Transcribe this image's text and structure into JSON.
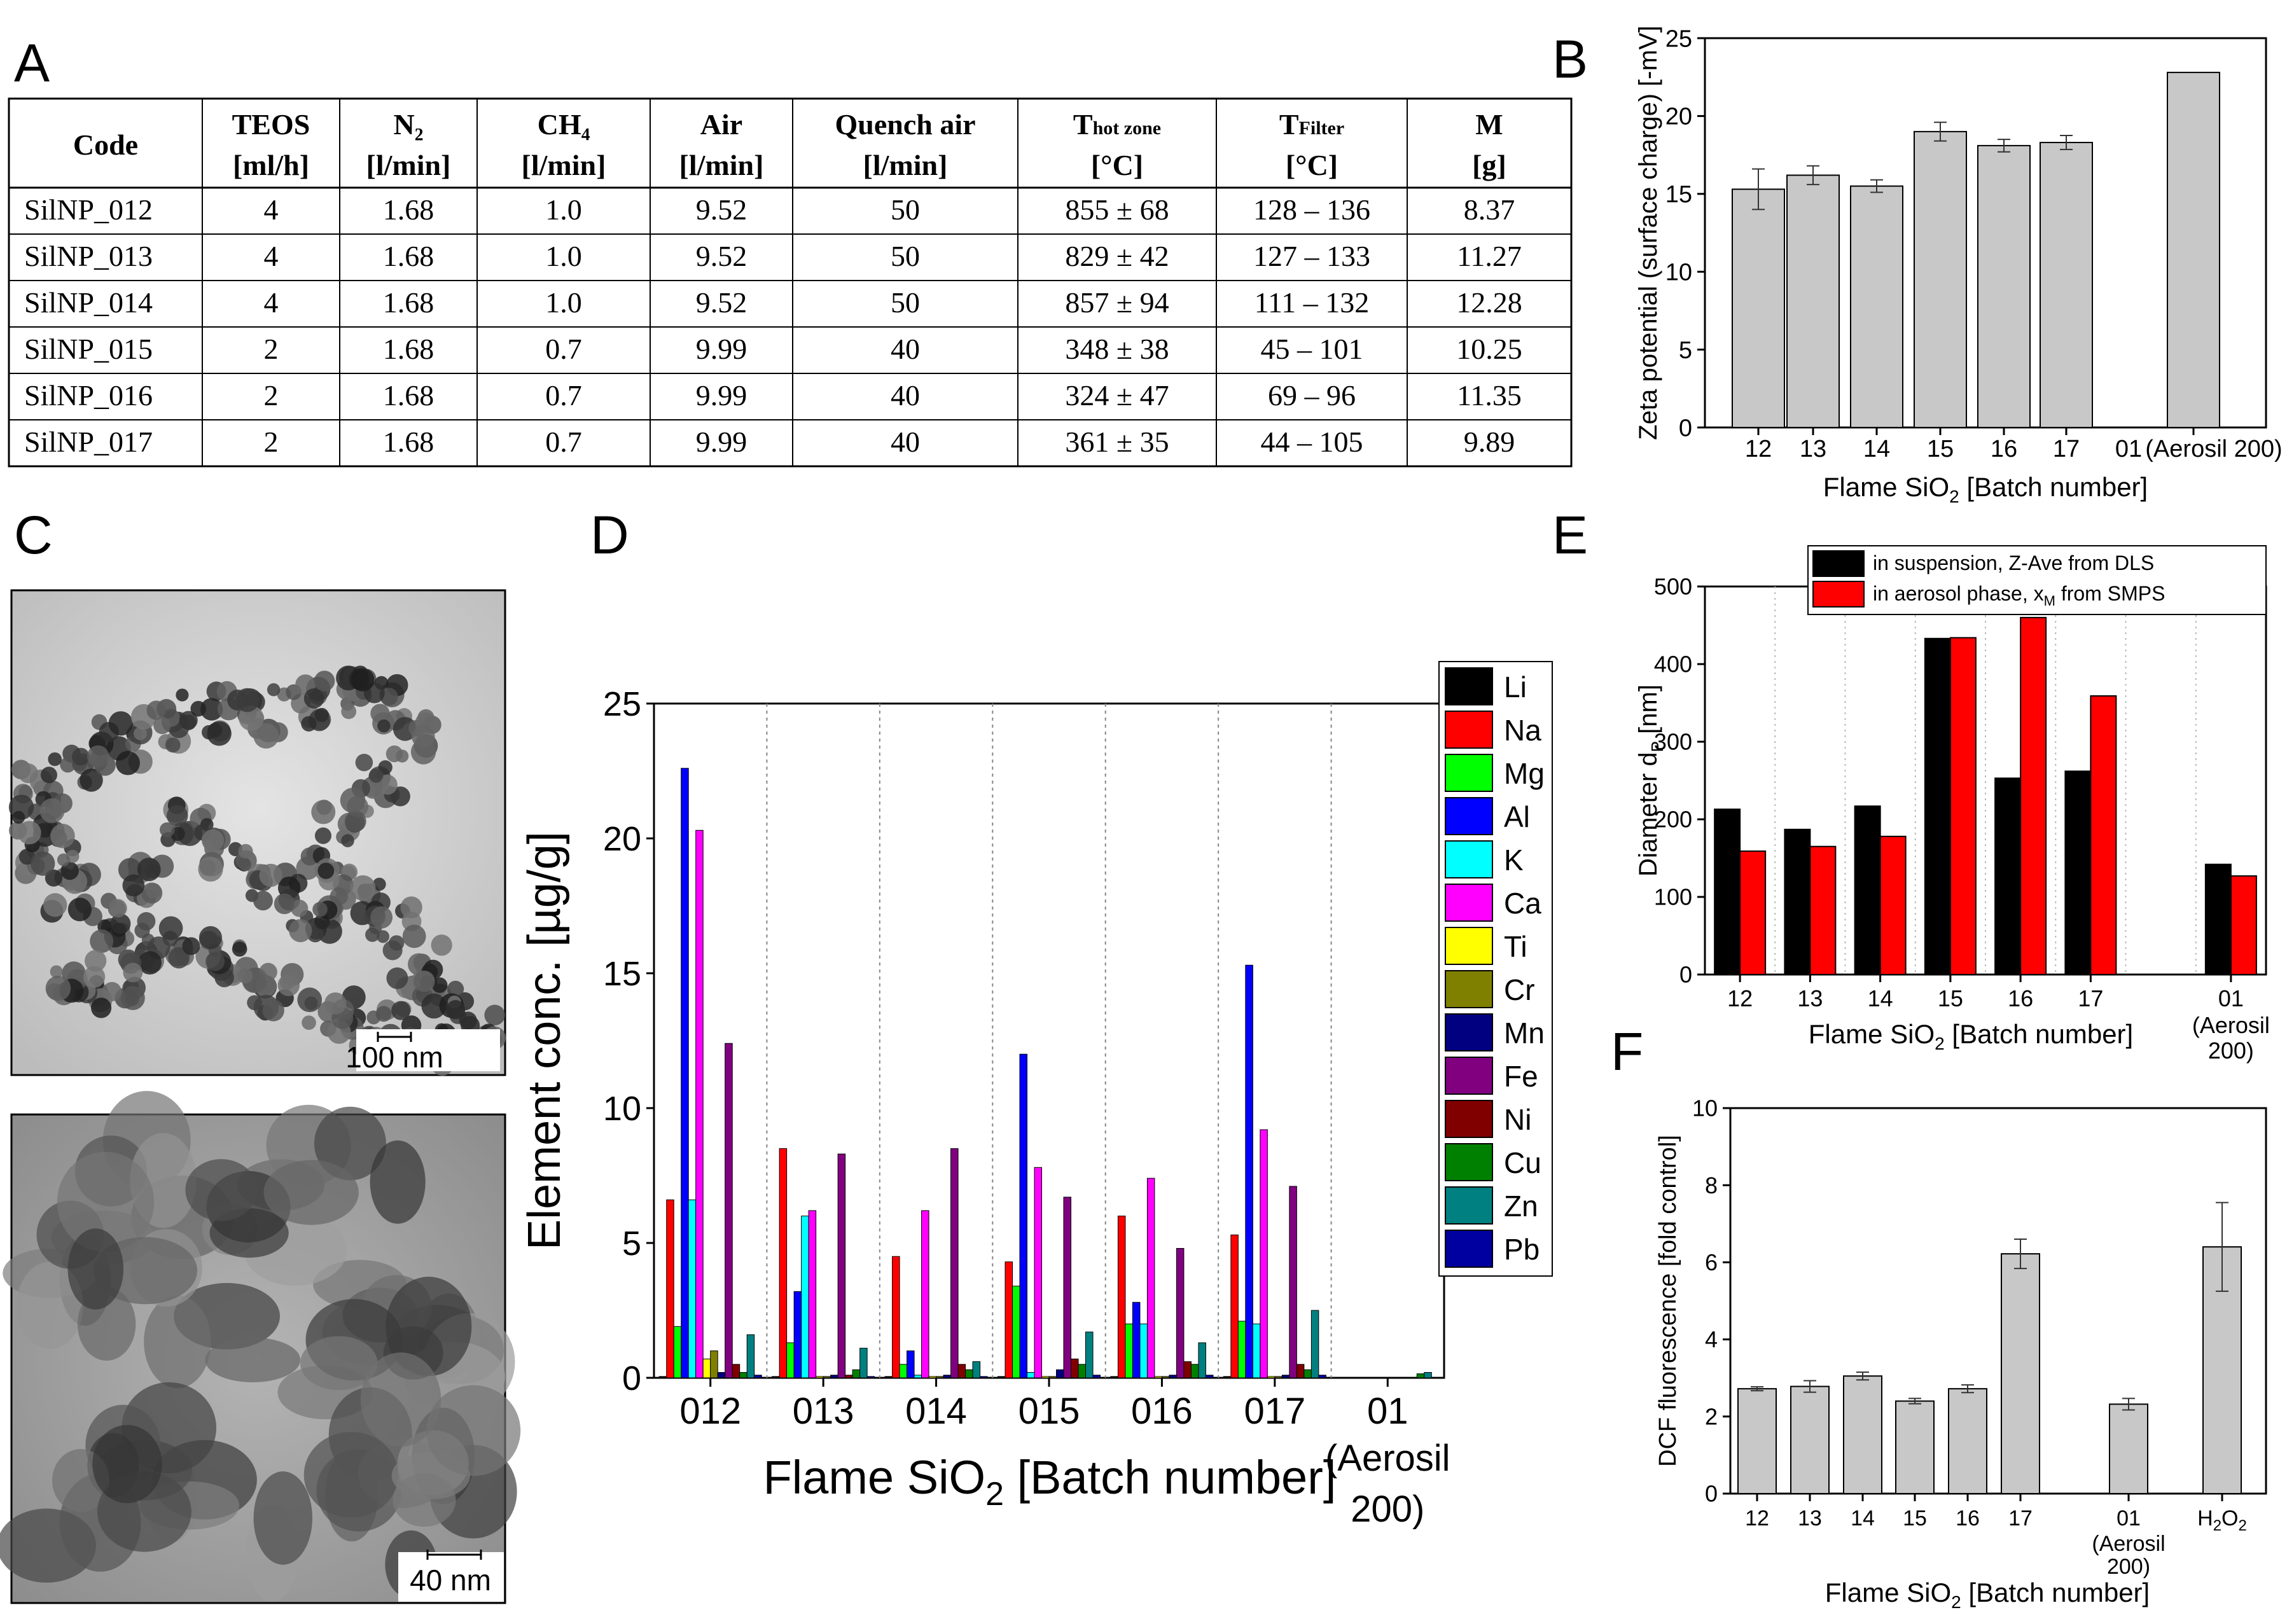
{
  "colors": {
    "bar_gray": "#c8c8c8",
    "black": "#000000",
    "red": "#ff0000",
    "tem_bg_top": "#d9d9d9",
    "tem_bg_bottom": "#b8b8b8"
  },
  "panel_letters": {
    "A": "A",
    "B": "B",
    "C": "C",
    "D": "D",
    "E": "E",
    "F": "F"
  },
  "table": {
    "headers": [
      {
        "top": "Code",
        "bottom": ""
      },
      {
        "top": "TEOS",
        "bottom": "[ml/h]"
      },
      {
        "top": "N₂",
        "bottom": "[l/min]"
      },
      {
        "top": "CH₄",
        "bottom": "[l/min]"
      },
      {
        "top": "Air",
        "bottom": "[l/min]"
      },
      {
        "top": "Quench air",
        "bottom": "[l/min]"
      },
      {
        "top": "T",
        "sub": "hot zone",
        "bottom": "[°C]"
      },
      {
        "top": "T",
        "sub": "Filter",
        "bottom": "[°C]"
      },
      {
        "top": "M",
        "bottom": "[g]"
      }
    ],
    "rows": [
      [
        "SilNP_012",
        "4",
        "1.68",
        "1.0",
        "9.52",
        "50",
        "855 ± 68",
        "128 – 136",
        "8.37"
      ],
      [
        "SilNP_013",
        "4",
        "1.68",
        "1.0",
        "9.52",
        "50",
        "829 ± 42",
        "127 – 133",
        "11.27"
      ],
      [
        "SilNP_014",
        "4",
        "1.68",
        "1.0",
        "9.52",
        "50",
        "857 ± 94",
        "111 – 132",
        "12.28"
      ],
      [
        "SilNP_015",
        "2",
        "1.68",
        "0.7",
        "9.99",
        "40",
        "348 ± 38",
        "45 – 101",
        "10.25"
      ],
      [
        "SilNP_016",
        "2",
        "1.68",
        "0.7",
        "9.99",
        "40",
        "324 ± 47",
        "69 – 96",
        "11.35"
      ],
      [
        "SilNP_017",
        "2",
        "1.68",
        "0.7",
        "9.99",
        "40",
        "361 ± 35",
        "44 – 105",
        "9.89"
      ]
    ]
  },
  "tem": {
    "scale_top": "100 nm",
    "scale_bottom": "40 nm"
  },
  "chart_data": [
    {
      "id": "B",
      "type": "bar",
      "categories": [
        "12",
        "13",
        "14",
        "15",
        "16",
        "17",
        "01 (Aerosil 200)"
      ],
      "values": [
        15.3,
        16.2,
        15.5,
        19.0,
        18.1,
        18.3,
        22.8
      ],
      "errors": [
        1.3,
        0.6,
        0.4,
        0.6,
        0.4,
        0.45,
        0
      ],
      "ylabel": "Zeta potential (surface charge) [-mV]",
      "xlabel": "Flame SiO₂ [Batch number]",
      "ylim": [
        0,
        25
      ],
      "yticks": [
        "0",
        "5",
        "10",
        "15",
        "20",
        "25"
      ]
    },
    {
      "id": "D",
      "type": "bar",
      "categories": [
        "012",
        "013",
        "014",
        "015",
        "016",
        "017",
        "01"
      ],
      "category_sub": [
        "",
        "",
        "",
        "",
        "",
        "",
        "(Aerosil"
      ],
      "category_sub2": [
        "",
        "",
        "",
        "",
        "",
        "",
        "200)"
      ],
      "ylabel": "Element conc. [µg/g]",
      "xlabel": "Flame SiO₂ [Batch number]",
      "ylim": [
        0,
        25
      ],
      "yticks": [
        "0",
        "5",
        "10",
        "15",
        "20",
        "25"
      ],
      "series": [
        {
          "name": "Li",
          "color": "#000000",
          "values": [
            0.05,
            0.05,
            0.05,
            0.05,
            0.05,
            0.05,
            0.0
          ]
        },
        {
          "name": "Na",
          "color": "#ff0000",
          "values": [
            6.6,
            8.5,
            4.5,
            4.3,
            6.0,
            5.3,
            0.0
          ]
        },
        {
          "name": "Mg",
          "color": "#00ff00",
          "values": [
            1.9,
            1.3,
            0.5,
            3.4,
            2.0,
            2.1,
            0.0
          ]
        },
        {
          "name": "Al",
          "color": "#0000ff",
          "values": [
            22.6,
            3.2,
            1.0,
            12.0,
            2.8,
            15.3,
            0.0
          ]
        },
        {
          "name": "K",
          "color": "#00ffff",
          "values": [
            6.6,
            6.0,
            0.1,
            0.2,
            2.0,
            2.0,
            0.0
          ]
        },
        {
          "name": "Ca",
          "color": "#ff00ff",
          "values": [
            20.3,
            6.2,
            6.2,
            7.8,
            7.4,
            9.2,
            0.0
          ]
        },
        {
          "name": "Ti",
          "color": "#ffff00",
          "values": [
            0.7,
            0.05,
            0.05,
            0.05,
            0.05,
            0.05,
            0.0
          ]
        },
        {
          "name": "Cr",
          "color": "#808000",
          "values": [
            1.0,
            0.05,
            0.05,
            0.05,
            0.05,
            0.05,
            0.0
          ]
        },
        {
          "name": "Mn",
          "color": "#000080",
          "values": [
            0.2,
            0.1,
            0.1,
            0.3,
            0.1,
            0.1,
            0.0
          ]
        },
        {
          "name": "Fe",
          "color": "#800080",
          "values": [
            12.4,
            8.3,
            8.5,
            6.7,
            4.8,
            7.1,
            0.0
          ]
        },
        {
          "name": "Ni",
          "color": "#800000",
          "values": [
            0.5,
            0.1,
            0.5,
            0.7,
            0.6,
            0.5,
            0.0
          ]
        },
        {
          "name": "Cu",
          "color": "#008000",
          "values": [
            0.2,
            0.3,
            0.3,
            0.5,
            0.5,
            0.3,
            0.15
          ]
        },
        {
          "name": "Zn",
          "color": "#008080",
          "values": [
            1.6,
            1.1,
            0.6,
            1.7,
            1.3,
            2.5,
            0.2
          ]
        },
        {
          "name": "Pb",
          "color": "#0000a0",
          "values": [
            0.1,
            0.05,
            0.05,
            0.1,
            0.1,
            0.1,
            0.0
          ]
        }
      ]
    },
    {
      "id": "E",
      "type": "bar",
      "categories": [
        "12",
        "13",
        "14",
        "15",
        "16",
        "17",
        "",
        "01"
      ],
      "category_sub": [
        "",
        "",
        "",
        "",
        "",
        "",
        "",
        "(Aerosil"
      ],
      "category_sub2": [
        "",
        "",
        "",
        "",
        "",
        "",
        "",
        "200)"
      ],
      "ylabel": "Diameter d",
      "ylabel_sub": "P",
      "ylabel_unit": " [nm]",
      "xlabel": "Flame SiO₂ [Batch number]",
      "ylim": [
        0,
        500
      ],
      "yticks": [
        "0",
        "100",
        "200",
        "300",
        "400",
        "500"
      ],
      "series": [
        {
          "name": "in suspension, Z-Ave from DLS",
          "color": "#000000",
          "values": [
            213,
            187,
            217,
            433,
            253,
            262,
            null,
            142
          ]
        },
        {
          "name": "in aerosol phase,  x",
          "name_sub": "M",
          "name_tail": " from SMPS",
          "color": "#ff0000",
          "values": [
            159,
            165,
            178,
            434,
            460,
            359,
            null,
            127
          ]
        }
      ]
    },
    {
      "id": "F",
      "type": "bar",
      "categories": [
        "12",
        "13",
        "14",
        "15",
        "16",
        "17",
        "",
        "01",
        "",
        "H₂O₂"
      ],
      "category_sub": [
        "",
        "",
        "",
        "",
        "",
        "",
        "",
        "(Aerosil",
        "",
        ""
      ],
      "category_sub2": [
        "",
        "",
        "",
        "",
        "",
        "",
        "",
        "200)",
        "",
        ""
      ],
      "values": [
        2.72,
        2.78,
        3.05,
        2.4,
        2.72,
        6.22,
        null,
        2.32,
        null,
        6.4
      ],
      "errors": [
        0.05,
        0.15,
        0.1,
        0.07,
        0.1,
        0.38,
        null,
        0.15,
        null,
        1.15
      ],
      "ylabel": "DCF fluorescence [fold control]",
      "xlabel": "Flame SiO₂ [Batch number]",
      "ylim": [
        0,
        10
      ],
      "yticks": [
        "0",
        "2",
        "4",
        "6",
        "8",
        "10"
      ]
    }
  ]
}
